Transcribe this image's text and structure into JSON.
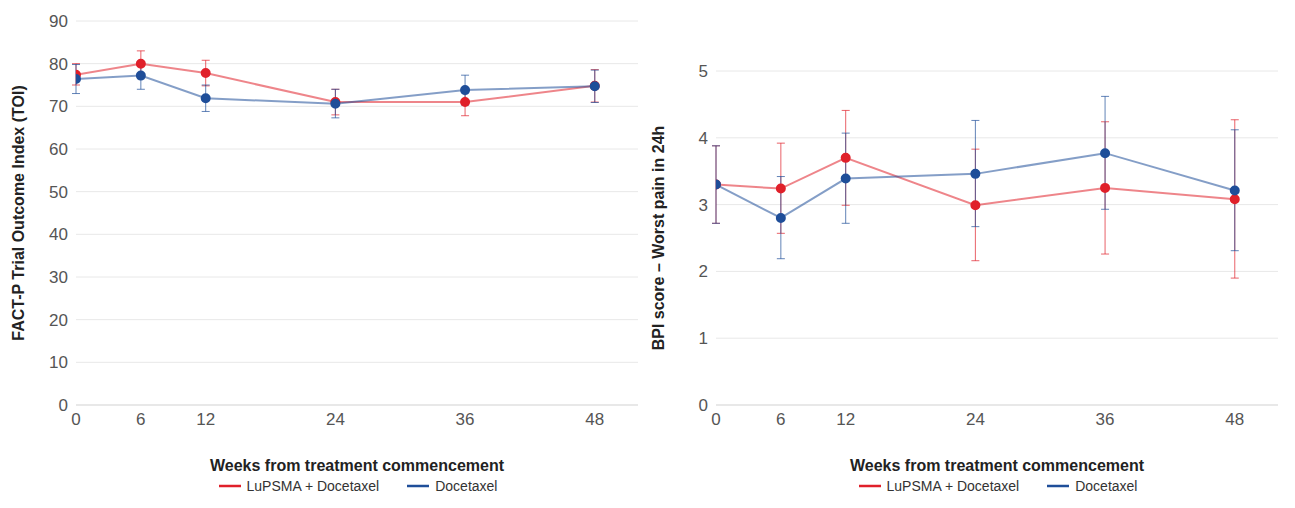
{
  "chart_data": [
    {
      "type": "line",
      "x_label": "Weeks from treatment commencement",
      "y_label": "FACT-P Trial Outcome Index (TOI)",
      "x": [
        0,
        6,
        12,
        24,
        36,
        48
      ],
      "xlim": [
        0,
        52
      ],
      "xticks": [
        0,
        6,
        12,
        24,
        36,
        48
      ],
      "ylim": [
        0,
        90
      ],
      "yticks": [
        0,
        10,
        20,
        30,
        40,
        50,
        60,
        70,
        80,
        90
      ],
      "grid": true,
      "legend": "bottom",
      "marker": "circle",
      "series": [
        {
          "name": "LuPSMA + Docetaxel",
          "color": "#e0202a",
          "values": [
            77.4,
            80.0,
            77.8,
            71.0,
            71.0,
            74.8
          ],
          "ci_lower": [
            75.0,
            77.0,
            74.8,
            68.0,
            67.8,
            71.0
          ],
          "ci_upper": [
            80.0,
            83.0,
            80.8,
            74.0,
            74.2,
            78.6
          ]
        },
        {
          "name": "Docetaxel",
          "color": "#1f4e99",
          "values": [
            76.4,
            77.2,
            71.9,
            70.6,
            73.8,
            74.7
          ],
          "ci_lower": [
            73.0,
            74.0,
            68.8,
            67.3,
            70.3,
            70.9
          ],
          "ci_upper": [
            79.8,
            80.4,
            75.0,
            74.0,
            77.3,
            78.5
          ]
        }
      ]
    },
    {
      "type": "line",
      "x_label": "Weeks from treatment commencement",
      "y_label": "BPI score – Worst pain in 24h",
      "x": [
        0,
        6,
        12,
        24,
        36,
        48
      ],
      "xlim": [
        0,
        52
      ],
      "xticks": [
        0,
        6,
        12,
        24,
        36,
        48
      ],
      "ylim": [
        0,
        5
      ],
      "yticks": [
        0,
        1,
        2,
        3,
        4,
        5
      ],
      "grid": true,
      "legend": "bottom",
      "marker": "circle",
      "series": [
        {
          "name": "LuPSMA + Docetaxel",
          "color": "#e0202a",
          "values": [
            3.3,
            3.24,
            3.7,
            2.99,
            3.25,
            3.08
          ],
          "ci_lower": [
            2.72,
            2.57,
            2.99,
            2.16,
            2.26,
            1.9
          ],
          "ci_upper": [
            3.88,
            3.92,
            4.41,
            3.83,
            4.24,
            4.27
          ]
        },
        {
          "name": "Docetaxel",
          "color": "#1f4e99",
          "values": [
            3.3,
            2.8,
            3.39,
            3.46,
            3.77,
            3.21
          ],
          "ci_lower": [
            2.72,
            2.19,
            2.72,
            2.67,
            2.93,
            2.31
          ],
          "ci_upper": [
            3.88,
            3.42,
            4.07,
            4.26,
            4.62,
            4.12
          ]
        }
      ]
    }
  ]
}
